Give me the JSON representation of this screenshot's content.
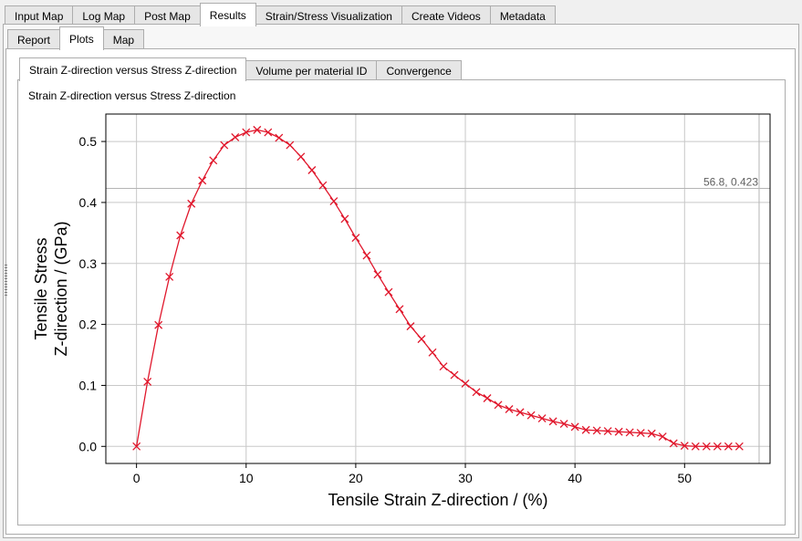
{
  "main_tabs": [
    "Input Map",
    "Log Map",
    "Post Map",
    "Results",
    "Strain/Stress Visualization",
    "Create Videos",
    "Metadata"
  ],
  "main_tab_active": 3,
  "sub_tabs": [
    "Report",
    "Plots",
    "Map"
  ],
  "sub_tab_active": 1,
  "plot_tabs": [
    "Strain Z-direction versus Stress Z-direction",
    "Volume per material ID",
    "Convergence"
  ],
  "plot_tab_active": 0,
  "plot_title": "Strain Z-direction versus Stress Z-direction",
  "chart_data": {
    "type": "line",
    "title": "",
    "xlabel": "Tensile Strain Z-direction / (%)",
    "ylabel": [
      "Tensile Stress",
      "Z-direction / (GPa)"
    ],
    "xlim": [
      -2.8,
      57.8
    ],
    "ylim": [
      -0.028,
      0.545
    ],
    "xticks": [
      0,
      10,
      20,
      30,
      40,
      50
    ],
    "yticks": [
      0.0,
      0.1,
      0.2,
      0.3,
      0.4,
      0.5
    ],
    "grid": true,
    "series": [
      {
        "color": "#e0162b",
        "marker": "x",
        "x": [
          0,
          1,
          2,
          3,
          4,
          5,
          6,
          7,
          8,
          9,
          10,
          11,
          12,
          13,
          14,
          15,
          16,
          17,
          18,
          19,
          20,
          21,
          22,
          23,
          24,
          25,
          26,
          27,
          28,
          29,
          30,
          31,
          32,
          33,
          34,
          35,
          36,
          37,
          38,
          39,
          40,
          41,
          42,
          43,
          44,
          45,
          46,
          47,
          48,
          49,
          50,
          51,
          52,
          53,
          54,
          55
        ],
        "y": [
          0.0,
          0.106,
          0.199,
          0.278,
          0.346,
          0.398,
          0.436,
          0.469,
          0.494,
          0.507,
          0.515,
          0.519,
          0.515,
          0.506,
          0.494,
          0.475,
          0.453,
          0.428,
          0.402,
          0.373,
          0.342,
          0.313,
          0.282,
          0.253,
          0.225,
          0.197,
          0.176,
          0.154,
          0.131,
          0.117,
          0.103,
          0.089,
          0.079,
          0.068,
          0.061,
          0.056,
          0.051,
          0.046,
          0.041,
          0.037,
          0.032,
          0.027,
          0.026,
          0.025,
          0.024,
          0.023,
          0.022,
          0.021,
          0.016,
          0.005,
          0.001,
          0.0,
          0.0,
          0.0,
          0.0,
          0.0
        ]
      }
    ],
    "crosshair": {
      "x": 56.8,
      "y": 0.423,
      "label": "56.8, 0.423"
    }
  }
}
